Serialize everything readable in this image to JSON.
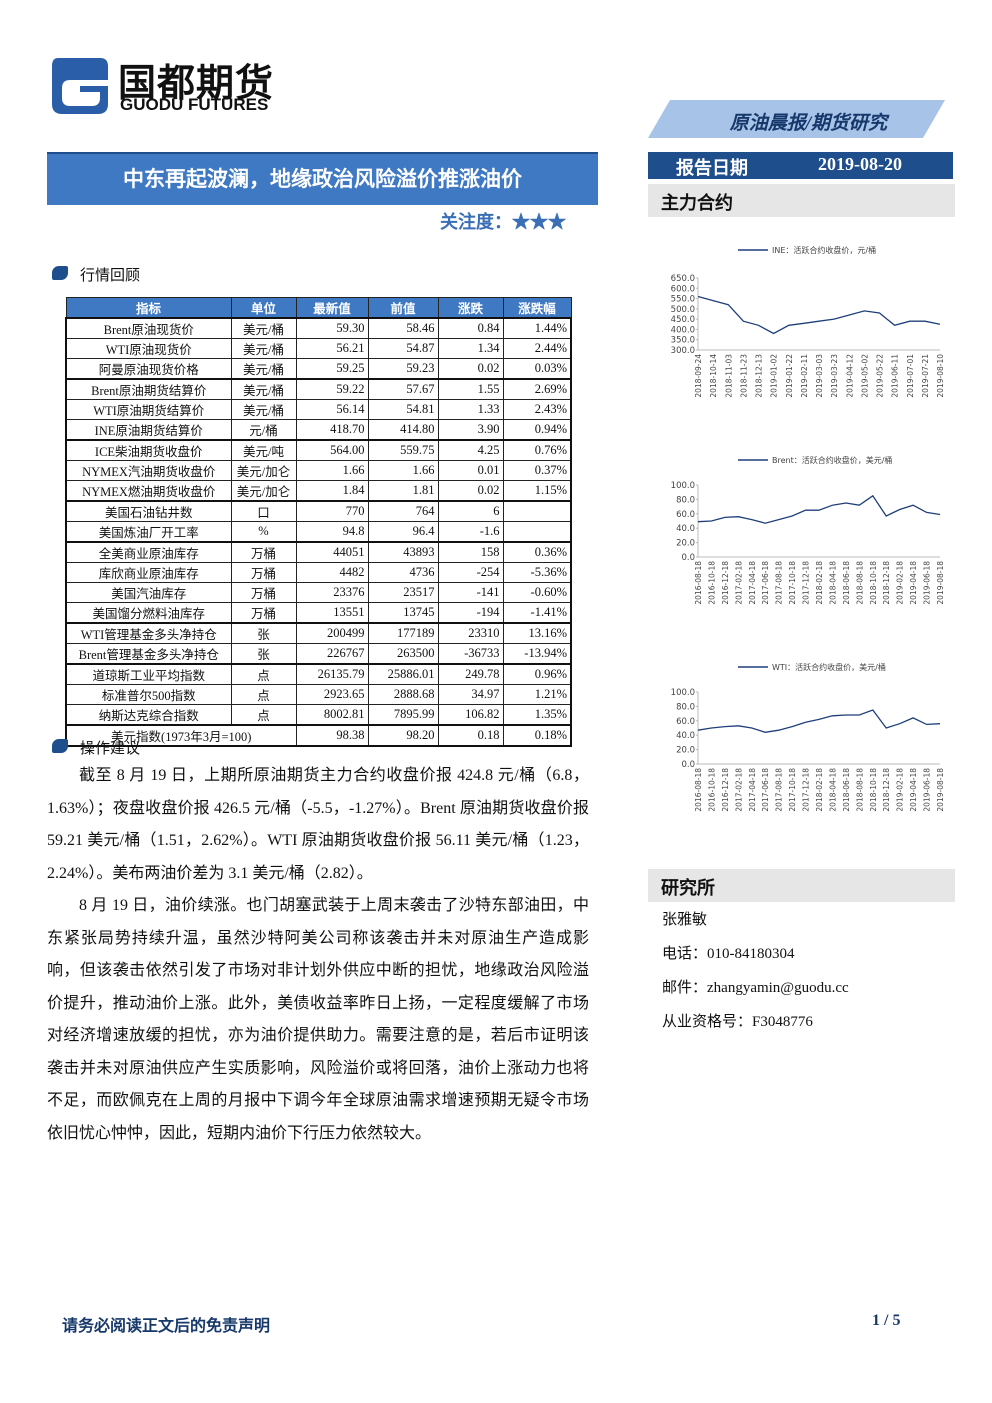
{
  "header": {
    "logo_cn": "国都期货",
    "logo_en": "GUODU FUTURES",
    "tag": "原油晨报/期货研究",
    "date_label": "报告日期",
    "date": "2019-08-20"
  },
  "title": "中东再起波澜，地缘政治风险溢价推涨油价",
  "attention": "关注度：★★★",
  "section1": "行情回顾",
  "table": {
    "headers": [
      "指标",
      "单位",
      "最新值",
      "前值",
      "涨跌",
      "涨跌幅"
    ],
    "groups": [
      {
        "rows": [
          [
            "Brent原油现货价",
            "美元/桶",
            "59.30",
            "58.46",
            "0.84",
            "1.44%"
          ],
          [
            "WTI原油现货价",
            "美元/桶",
            "56.21",
            "54.87",
            "1.34",
            "2.44%"
          ],
          [
            "阿曼原油现货价格",
            "美元/桶",
            "59.25",
            "59.23",
            "0.02",
            "0.03%"
          ]
        ]
      },
      {
        "rows": [
          [
            "Brent原油期货结算价",
            "美元/桶",
            "59.22",
            "57.67",
            "1.55",
            "2.69%"
          ],
          [
            "WTI原油期货结算价",
            "美元/桶",
            "56.14",
            "54.81",
            "1.33",
            "2.43%"
          ],
          [
            "INE原油期货结算价",
            "元/桶",
            "418.70",
            "414.80",
            "3.90",
            "0.94%"
          ]
        ]
      },
      {
        "rows": [
          [
            "ICE柴油期货收盘价",
            "美元/吨",
            "564.00",
            "559.75",
            "4.25",
            "0.76%"
          ],
          [
            "NYMEX汽油期货收盘价",
            "美元/加仑",
            "1.66",
            "1.66",
            "0.01",
            "0.37%"
          ],
          [
            "NYMEX燃油期货收盘价",
            "美元/加仑",
            "1.84",
            "1.81",
            "0.02",
            "1.15%"
          ]
        ]
      },
      {
        "rows": [
          [
            "美国石油钻井数",
            "口",
            "770",
            "764",
            "6"
          ],
          [
            "美国炼油厂开工率",
            "%",
            "94.8",
            "96.4",
            "-1.6"
          ]
        ]
      },
      {
        "rows": [
          [
            "全美商业原油库存",
            "万桶",
            "44051",
            "43893",
            "158",
            "0.36%"
          ],
          [
            "库欣商业原油库存",
            "万桶",
            "4482",
            "4736",
            "-254",
            "-5.36%"
          ],
          [
            "美国汽油库存",
            "万桶",
            "23376",
            "23517",
            "-141",
            "-0.60%"
          ],
          [
            "美国馏分燃料油库存",
            "万桶",
            "13551",
            "13745",
            "-194",
            "-1.41%"
          ]
        ]
      },
      {
        "rows": [
          [
            "WTI管理基金多头净持仓",
            "张",
            "200499",
            "177189",
            "23310",
            "13.16%"
          ],
          [
            "Brent管理基金多头净持仓",
            "张",
            "226767",
            "263500",
            "-36733",
            "-13.94%"
          ]
        ]
      },
      {
        "rows": [
          [
            "道琼斯工业平均指数",
            "点",
            "26135.79",
            "25886.01",
            "249.78",
            "0.96%"
          ],
          [
            "标准普尔500指数",
            "点",
            "2923.65",
            "2888.68",
            "34.97",
            "1.21%"
          ],
          [
            "纳斯达克综合指数",
            "点",
            "8002.81",
            "7895.99",
            "106.82",
            "1.35%"
          ]
        ]
      }
    ],
    "footer_row": [
      "美元指数(1973年3月=100)",
      "98.38",
      "98.20",
      "0.18",
      "0.18%"
    ]
  },
  "section2": "操作建议",
  "paragraphs": [
    "截至 8 月 19 日，上期所原油期货主力合约收盘价报 424.8 元/桶（6.8，1.63%）；夜盘收盘价报 426.5 元/桶（-5.5，-1.27%）。Brent 原油期货收盘价报 59.21 美元/桶（1.51，2.62%）。WTI 原油期货收盘价报 56.11 美元/桶（1.23，2.24%）。美布两油价差为 3.1 美元/桶（2.82）。",
    "8 月 19 日，油价续涨。也门胡塞武装于上周末袭击了沙特东部油田，中东紧张局势持续升温，虽然沙特阿美公司称该袭击并未对原油生产造成影响，但该袭击依然引发了市场对非计划外供应中断的担忧，地缘政治风险溢价提升，推动油价上涨。此外，美债收益率昨日上扬，一定程度缓解了市场对经济增速放缓的担忧，亦为油价提供助力。需要注意的是，若后市证明该袭击并未对原油供应产生实质影响，风险溢价或将回落，油价上涨动力也将不足，而欧佩克在上周的月报中下调今年全球原油需求增速预期无疑令市场依旧忧心忡忡，因此，短期内油价下行压力依然较大。"
  ],
  "sidebar": {
    "contract_title": "主力合约",
    "charts": [
      {
        "type": "line",
        "categories": [
          "2018-09-24",
          "2018-10-14",
          "2018-11-03",
          "2018-11-23",
          "2018-12-13",
          "2019-01-02",
          "2019-01-22",
          "2019-02-11",
          "2019-03-03",
          "2019-03-23",
          "2019-04-12",
          "2019-05-02",
          "2019-05-22",
          "2019-06-11",
          "2019-07-01",
          "2019-07-21",
          "2019-08-10"
        ],
        "series": [
          {
            "name": "INE：活跃合约收盘价，元/桶",
            "color": "#1f3f7a",
            "values": [
              560,
              540,
              520,
              440,
              420,
              380,
              420,
              430,
              440,
              450,
              470,
              490,
              480,
              420,
              440,
              440,
              425
            ]
          }
        ],
        "ylim": [
          300,
          650
        ],
        "yticks": [
          {
            "value": 300,
            "label": "300.0"
          },
          {
            "value": 350,
            "label": "350.0"
          },
          {
            "value": 400,
            "label": "400.0"
          },
          {
            "value": 450,
            "label": "450.0"
          },
          {
            "value": 500,
            "label": "500.0"
          },
          {
            "value": 550,
            "label": "550.0"
          },
          {
            "value": 600,
            "label": "600.0"
          },
          {
            "value": 650,
            "label": "650.0"
          }
        ]
      },
      {
        "type": "line",
        "categories": [
          "2016-08-18",
          "2016-10-18",
          "2016-12-18",
          "2017-02-18",
          "2017-04-18",
          "2017-06-18",
          "2017-08-18",
          "2017-10-18",
          "2017-12-18",
          "2018-02-18",
          "2018-04-18",
          "2018-06-18",
          "2018-08-18",
          "2018-10-18",
          "2018-12-18",
          "2019-02-18",
          "2019-04-18",
          "2019-06-18",
          "2019-08-18"
        ],
        "series": [
          {
            "name": "Brent：活跃合约收盘价，美元/桶",
            "color": "#1f3f7a",
            "values": [
              49,
              50,
              55,
              56,
              52,
              47,
              52,
              57,
              65,
              65,
              72,
              75,
              72,
              85,
              57,
              66,
              72,
              62,
              59
            ]
          }
        ],
        "ylim": [
          0,
          100
        ],
        "yticks": [
          {
            "value": 0,
            "label": "0.0"
          },
          {
            "value": 20,
            "label": "20.0"
          },
          {
            "value": 40,
            "label": "40.0"
          },
          {
            "value": 60,
            "label": "60.0"
          },
          {
            "value": 80,
            "label": "80.0"
          },
          {
            "value": 100,
            "label": "100.0"
          }
        ]
      },
      {
        "type": "line",
        "categories": [
          "2016-08-18",
          "2016-10-18",
          "2016-12-18",
          "2017-02-18",
          "2017-04-18",
          "2017-06-18",
          "2017-08-18",
          "2017-10-18",
          "2017-12-18",
          "2018-02-18",
          "2018-04-18",
          "2018-06-18",
          "2018-08-18",
          "2018-10-18",
          "2018-12-18",
          "2019-02-18",
          "2019-04-18",
          "2019-06-18",
          "2019-08-18"
        ],
        "series": [
          {
            "name": "WTI：活跃合约收盘价，美元/桶",
            "color": "#1f3f7a",
            "values": [
              47,
              50,
              52,
              53,
              50,
              44,
              47,
              52,
              58,
              62,
              67,
              68,
              68,
              75,
              50,
              56,
              64,
              55,
              56
            ]
          }
        ],
        "ylim": [
          0,
          100
        ],
        "yticks": [
          {
            "value": 0,
            "label": "0.0"
          },
          {
            "value": 20,
            "label": "20.0"
          },
          {
            "value": 40,
            "label": "40.0"
          },
          {
            "value": 60,
            "label": "60.0"
          },
          {
            "value": 80,
            "label": "80.0"
          },
          {
            "value": 100,
            "label": "100.0"
          }
        ]
      }
    ],
    "institute_title": "研究所",
    "contacts": [
      "张雅敏",
      "电话：010-84180304",
      "邮件：zhangyamin@guodu.cc",
      "从业资格号：F3048776"
    ]
  },
  "footer": {
    "disclaimer": "请务必阅读正文后的免责声明",
    "page": "1 / 5"
  }
}
